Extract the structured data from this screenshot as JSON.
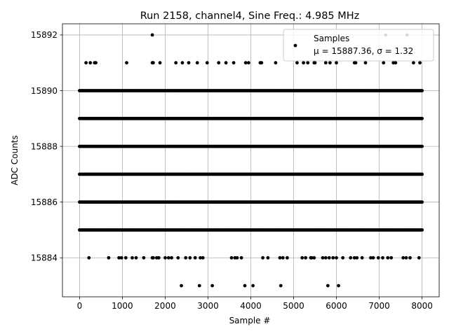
{
  "chart_data": {
    "type": "scatter",
    "title": "Run 2158, channel4, Sine Freq.: 4.985 MHz",
    "xlabel": "Sample #",
    "ylabel": "ADC Counts",
    "xlim": [
      -400,
      8400
    ],
    "ylim": [
      15882.6,
      15892.4
    ],
    "xticks": [
      0,
      1000,
      2000,
      3000,
      4000,
      5000,
      6000,
      7000,
      8000
    ],
    "yticks": [
      15884,
      15886,
      15888,
      15890,
      15892
    ],
    "grid": true,
    "legend": {
      "placement": "top-right",
      "entries": [
        "Samples",
        "μ = 15887.36, σ = 1.32"
      ]
    },
    "series": [
      {
        "name": "Samples",
        "color": "#000000",
        "marker": "circle",
        "dense_levels": [
          15885,
          15886,
          15887,
          15888,
          15889,
          15890
        ],
        "x_range": [
          0,
          8000
        ],
        "sparse_points": {
          "15892": [
            1700,
            7150,
            7650
          ],
          "15891": [
            150,
            250,
            350,
            380,
            1100,
            1700,
            1720,
            1880,
            2250,
            2400,
            2550,
            2750,
            2980,
            3250,
            3420,
            3600,
            3880,
            3950,
            4220,
            4250,
            4580,
            5080,
            5230,
            5330,
            5480,
            5500,
            5750,
            5850,
            6000,
            6420,
            6450,
            6680,
            7100,
            7330,
            7380,
            7800,
            7950
          ],
          "15884": [
            220,
            680,
            920,
            980,
            1080,
            1230,
            1320,
            1500,
            1700,
            1720,
            1800,
            1850,
            2000,
            2080,
            2150,
            2300,
            2480,
            2580,
            2700,
            2820,
            2880,
            3550,
            3630,
            3680,
            3780,
            4280,
            4400,
            4680,
            4750,
            4850,
            5200,
            5280,
            5400,
            5420,
            5480,
            5680,
            5750,
            5830,
            5920,
            6000,
            6150,
            6330,
            6420,
            6480,
            6600,
            6800,
            6860,
            6980,
            7080,
            7200,
            7280,
            7560,
            7630,
            7720,
            7930
          ],
          "15883": [
            2380,
            2800,
            3100,
            3860,
            4050,
            4700,
            5800,
            6050
          ]
        }
      }
    ]
  }
}
